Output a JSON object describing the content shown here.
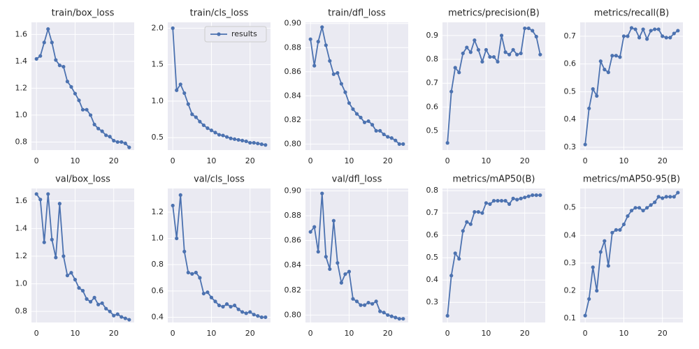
{
  "chart_data": [
    {
      "type": "line",
      "title": "train/box_loss",
      "x": [
        0,
        1,
        2,
        3,
        4,
        5,
        6,
        7,
        8,
        9,
        10,
        11,
        12,
        13,
        14,
        15,
        16,
        17,
        18,
        19,
        20,
        21,
        22,
        23,
        24
      ],
      "series": [
        {
          "color": "#4c72b0",
          "values": [
            1.418,
            1.44,
            1.54,
            1.64,
            1.54,
            1.41,
            1.37,
            1.36,
            1.25,
            1.21,
            1.16,
            1.11,
            1.04,
            1.04,
            1.0,
            0.93,
            0.9,
            0.88,
            0.85,
            0.84,
            0.81,
            0.8,
            0.8,
            0.79,
            0.76
          ]
        }
      ],
      "xlim": [
        -1.3,
        25.3
      ],
      "xticks": [
        0,
        10,
        20
      ],
      "ylim": [
        0.74,
        1.69
      ],
      "yticks": [
        0.8,
        {
          "value": 1.0,
          "label": "1.0"
        },
        1.2,
        1.4,
        1.6
      ],
      "grid": true
    },
    {
      "type": "line",
      "title": "train/cls_loss",
      "x": [
        0,
        1,
        2,
        3,
        4,
        5,
        6,
        7,
        8,
        9,
        10,
        11,
        12,
        13,
        14,
        15,
        16,
        17,
        18,
        19,
        20,
        21,
        22,
        23,
        24
      ],
      "series": [
        {
          "name": "results",
          "color": "#4c72b0",
          "values": [
            2.0,
            1.15,
            1.23,
            1.11,
            0.96,
            0.82,
            0.78,
            0.72,
            0.67,
            0.63,
            0.6,
            0.57,
            0.54,
            0.53,
            0.51,
            0.49,
            0.48,
            0.47,
            0.46,
            0.45,
            0.43,
            0.43,
            0.42,
            0.41,
            0.4
          ]
        }
      ],
      "xlim": [
        -1.3,
        25.3
      ],
      "xticks": [
        0,
        10,
        20
      ],
      "ylim": [
        0.33,
        2.08
      ],
      "yticks": [
        0.5,
        {
          "value": 1.0,
          "label": "1.0"
        },
        1.5,
        {
          "value": 2.0,
          "label": "2.0"
        }
      ],
      "grid": true,
      "legend": "upper right"
    },
    {
      "type": "line",
      "title": "train/dfl_loss",
      "x": [
        0,
        1,
        2,
        3,
        4,
        5,
        6,
        7,
        8,
        9,
        10,
        11,
        12,
        13,
        14,
        15,
        16,
        17,
        18,
        19,
        20,
        21,
        22,
        23,
        24
      ],
      "series": [
        {
          "color": "#4c72b0",
          "values": [
            0.887,
            0.865,
            0.885,
            0.897,
            0.882,
            0.869,
            0.858,
            0.859,
            0.85,
            0.843,
            0.834,
            0.829,
            0.825,
            0.822,
            0.818,
            0.819,
            0.816,
            0.811,
            0.811,
            0.808,
            0.806,
            0.805,
            0.803,
            0.8,
            0.8
          ]
        }
      ],
      "xlim": [
        -1.3,
        25.3
      ],
      "xticks": [
        0,
        10,
        20
      ],
      "ylim": [
        0.795,
        0.901
      ],
      "yticks": [
        {
          "value": 0.8,
          "label": "0.80"
        },
        0.82,
        0.84,
        0.86,
        0.88,
        {
          "value": 0.9,
          "label": "0.90"
        }
      ],
      "grid": true
    },
    {
      "type": "line",
      "title": "metrics/precision(B)",
      "x": [
        0,
        1,
        2,
        3,
        4,
        5,
        6,
        7,
        8,
        9,
        10,
        11,
        12,
        13,
        14,
        15,
        16,
        17,
        18,
        19,
        20,
        21,
        22,
        23,
        24
      ],
      "series": [
        {
          "color": "#4c72b0",
          "values": [
            0.45,
            0.665,
            0.765,
            0.745,
            0.825,
            0.85,
            0.83,
            0.88,
            0.84,
            0.79,
            0.84,
            0.81,
            0.81,
            0.79,
            0.9,
            0.83,
            0.82,
            0.84,
            0.82,
            0.825,
            0.93,
            0.93,
            0.92,
            0.895,
            0.82
          ]
        }
      ],
      "xlim": [
        -1.3,
        25.3
      ],
      "xticks": [
        0,
        10,
        20
      ],
      "ylim": [
        0.42,
        0.955
      ],
      "yticks": [
        0.5,
        0.6,
        0.7,
        0.8,
        0.9
      ],
      "grid": true
    },
    {
      "type": "line",
      "title": "metrics/recall(B)",
      "x": [
        0,
        1,
        2,
        3,
        4,
        5,
        6,
        7,
        8,
        9,
        10,
        11,
        12,
        13,
        14,
        15,
        16,
        17,
        18,
        19,
        20,
        21,
        22,
        23,
        24
      ],
      "series": [
        {
          "color": "#4c72b0",
          "values": [
            0.31,
            0.44,
            0.51,
            0.485,
            0.61,
            0.58,
            0.57,
            0.63,
            0.63,
            0.625,
            0.7,
            0.7,
            0.73,
            0.725,
            0.695,
            0.725,
            0.69,
            0.72,
            0.725,
            0.725,
            0.7,
            0.695,
            0.695,
            0.71,
            0.72
          ]
        }
      ],
      "xlim": [
        -1.3,
        25.3
      ],
      "xticks": [
        0,
        10,
        20
      ],
      "ylim": [
        0.29,
        0.75
      ],
      "yticks": [
        0.3,
        0.4,
        0.5,
        0.6,
        0.7
      ],
      "grid": true
    },
    {
      "type": "line",
      "title": "val/box_loss",
      "x": [
        0,
        1,
        2,
        3,
        4,
        5,
        6,
        7,
        8,
        9,
        10,
        11,
        12,
        13,
        14,
        15,
        16,
        17,
        18,
        19,
        20,
        21,
        22,
        23,
        24
      ],
      "series": [
        {
          "color": "#4c72b0",
          "values": [
            1.65,
            1.61,
            1.3,
            1.65,
            1.32,
            1.19,
            1.58,
            1.2,
            1.06,
            1.08,
            1.03,
            0.97,
            0.95,
            0.89,
            0.87,
            0.9,
            0.85,
            0.86,
            0.82,
            0.8,
            0.77,
            0.78,
            0.76,
            0.75,
            0.74
          ]
        }
      ],
      "xlim": [
        -1.3,
        25.3
      ],
      "xticks": [
        0,
        10,
        20
      ],
      "ylim": [
        0.72,
        1.69
      ],
      "yticks": [
        0.8,
        {
          "value": 1.0,
          "label": "1.0"
        },
        1.2,
        1.4,
        1.6
      ],
      "grid": true
    },
    {
      "type": "line",
      "title": "val/cls_loss",
      "x": [
        0,
        1,
        2,
        3,
        4,
        5,
        6,
        7,
        8,
        9,
        10,
        11,
        12,
        13,
        14,
        15,
        16,
        17,
        18,
        19,
        20,
        21,
        22,
        23,
        24
      ],
      "series": [
        {
          "color": "#4c72b0",
          "values": [
            1.25,
            1.0,
            1.33,
            0.9,
            0.74,
            0.73,
            0.74,
            0.7,
            0.58,
            0.59,
            0.55,
            0.52,
            0.49,
            0.48,
            0.5,
            0.48,
            0.49,
            0.46,
            0.44,
            0.43,
            0.44,
            0.42,
            0.41,
            0.4,
            0.4
          ]
        }
      ],
      "xlim": [
        -1.3,
        25.3
      ],
      "xticks": [
        0,
        10,
        20
      ],
      "ylim": [
        0.36,
        1.38
      ],
      "yticks": [
        0.4,
        0.6,
        0.8,
        {
          "value": 1.0,
          "label": "1.0"
        },
        1.2
      ],
      "grid": true
    },
    {
      "type": "line",
      "title": "val/dfl_loss",
      "x": [
        0,
        1,
        2,
        3,
        4,
        5,
        6,
        7,
        8,
        9,
        10,
        11,
        12,
        13,
        14,
        15,
        16,
        17,
        18,
        19,
        20,
        21,
        22,
        23,
        24
      ],
      "series": [
        {
          "color": "#4c72b0",
          "values": [
            0.867,
            0.871,
            0.851,
            0.898,
            0.847,
            0.837,
            0.876,
            0.842,
            0.826,
            0.833,
            0.835,
            0.813,
            0.811,
            0.808,
            0.808,
            0.81,
            0.809,
            0.811,
            0.803,
            0.802,
            0.8,
            0.799,
            0.798,
            0.797,
            0.797
          ]
        }
      ],
      "xlim": [
        -1.3,
        25.3
      ],
      "xticks": [
        0,
        10,
        20
      ],
      "ylim": [
        0.794,
        0.902
      ],
      "yticks": [
        {
          "value": 0.8,
          "label": "0.80"
        },
        0.82,
        0.84,
        0.86,
        0.88,
        {
          "value": 0.9,
          "label": "0.90"
        }
      ],
      "grid": true
    },
    {
      "type": "line",
      "title": "metrics/mAP50(B)",
      "x": [
        0,
        1,
        2,
        3,
        4,
        5,
        6,
        7,
        8,
        9,
        10,
        11,
        12,
        13,
        14,
        15,
        16,
        17,
        18,
        19,
        20,
        21,
        22,
        23,
        24
      ],
      "series": [
        {
          "color": "#4c72b0",
          "values": [
            0.24,
            0.42,
            0.52,
            0.495,
            0.62,
            0.66,
            0.65,
            0.705,
            0.705,
            0.7,
            0.745,
            0.74,
            0.755,
            0.755,
            0.755,
            0.755,
            0.74,
            0.765,
            0.76,
            0.765,
            0.77,
            0.775,
            0.78,
            0.78,
            0.78
          ]
        }
      ],
      "xlim": [
        -1.3,
        25.3
      ],
      "xticks": [
        0,
        10,
        20
      ],
      "ylim": [
        0.21,
        0.81
      ],
      "yticks": [
        0.3,
        0.4,
        0.5,
        0.6,
        0.7,
        0.8
      ],
      "grid": true
    },
    {
      "type": "line",
      "title": "metrics/mAP50-95(B)",
      "x": [
        0,
        1,
        2,
        3,
        4,
        5,
        6,
        7,
        8,
        9,
        10,
        11,
        12,
        13,
        14,
        15,
        16,
        17,
        18,
        19,
        20,
        21,
        22,
        23,
        24
      ],
      "series": [
        {
          "color": "#4c72b0",
          "values": [
            0.11,
            0.17,
            0.285,
            0.2,
            0.34,
            0.38,
            0.29,
            0.41,
            0.42,
            0.42,
            0.44,
            0.47,
            0.49,
            0.5,
            0.5,
            0.49,
            0.5,
            0.51,
            0.52,
            0.54,
            0.535,
            0.54,
            0.54,
            0.54,
            0.555
          ]
        }
      ],
      "xlim": [
        -1.3,
        25.3
      ],
      "xticks": [
        0,
        10,
        20
      ],
      "ylim": [
        0.085,
        0.57
      ],
      "yticks": [
        0.1,
        0.2,
        0.3,
        0.4,
        0.5
      ],
      "grid": true
    }
  ]
}
